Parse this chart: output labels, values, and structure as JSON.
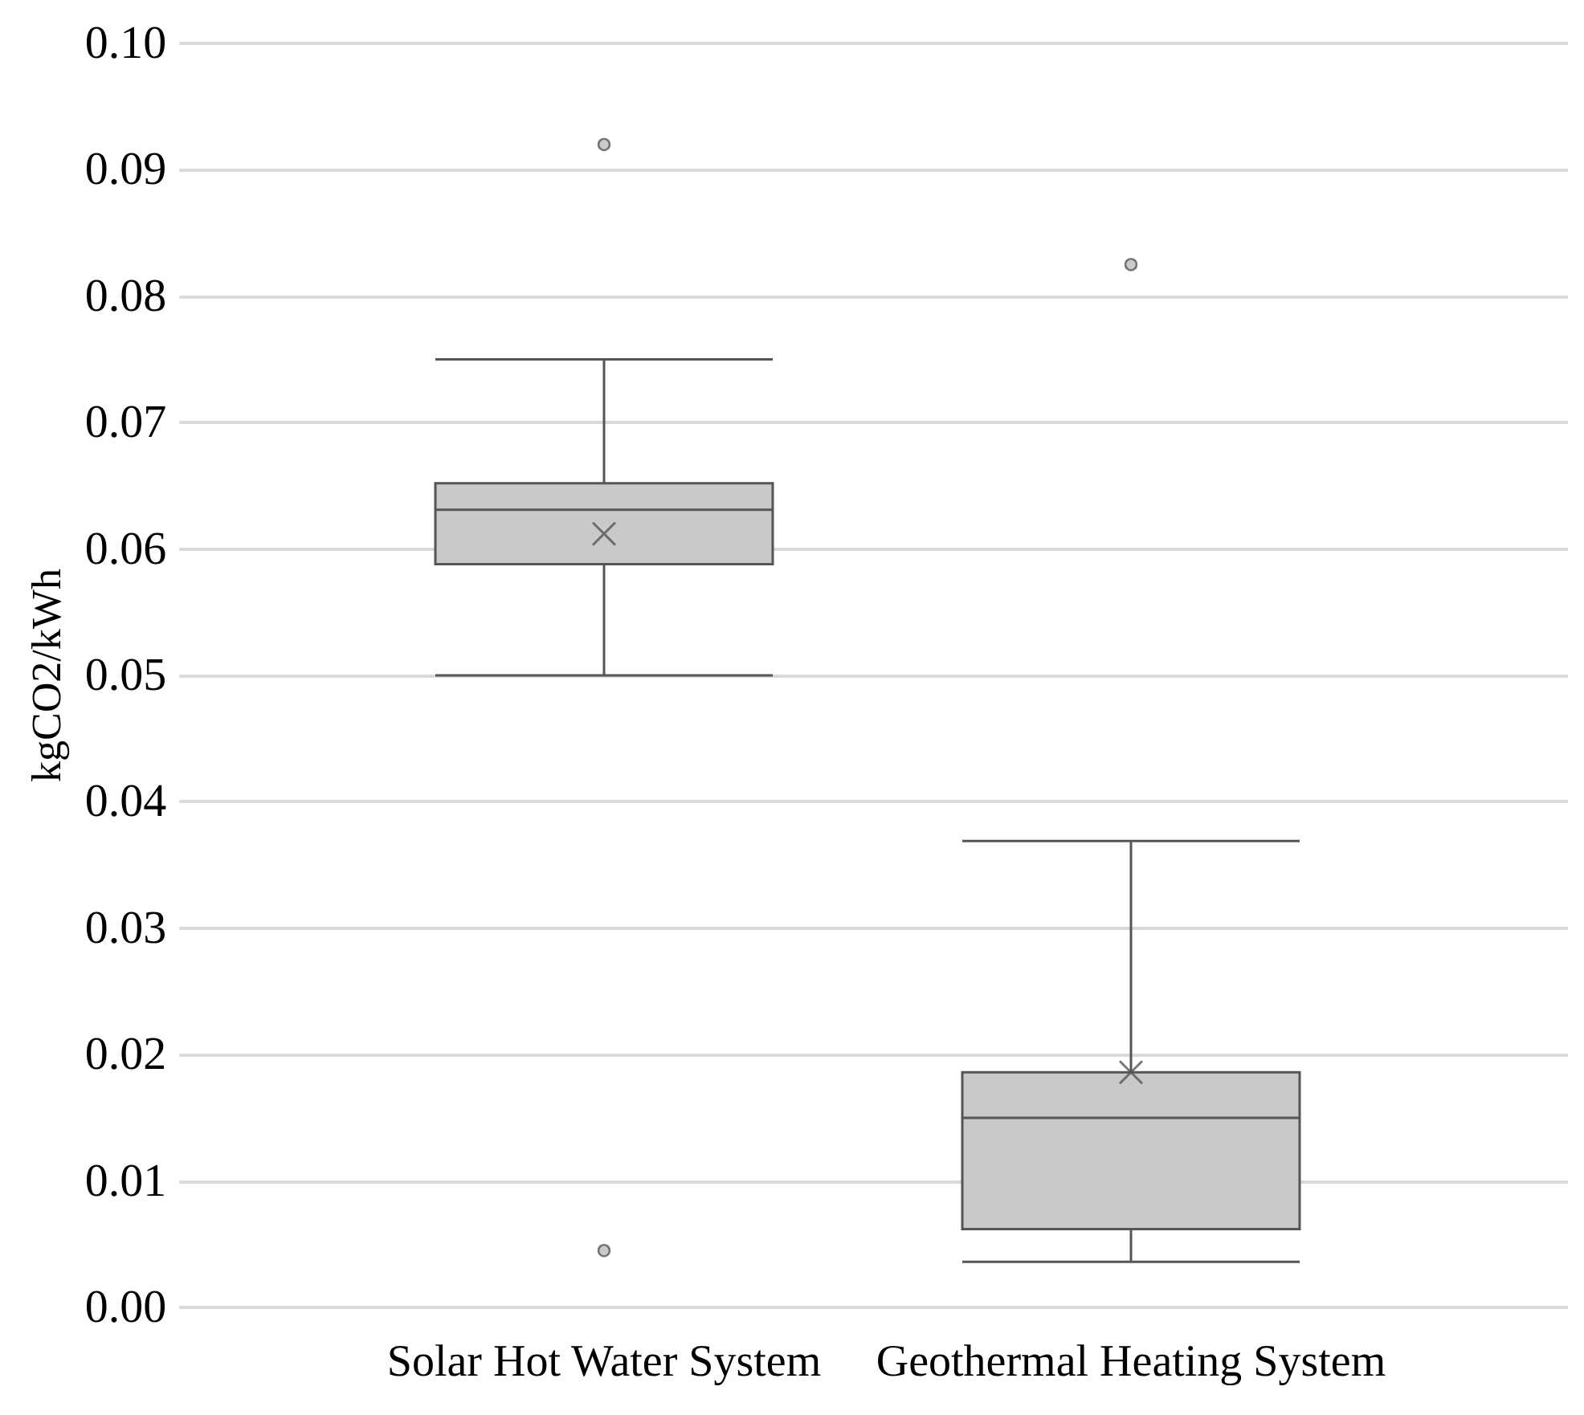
{
  "chart_data": {
    "type": "box",
    "ylabel": "kgCO2/kWh",
    "categories": [
      "Solar Hot Water System",
      "Geothermal Heating System"
    ],
    "series": [
      {
        "color": "#c9c9c9",
        "boxes": [
          {
            "low": 0.05,
            "q1": 0.0588,
            "median": 0.0631,
            "q3": 0.0652,
            "high": 0.075,
            "mean": 0.0612,
            "outliers": [
              0.092,
              0.0045
            ]
          },
          {
            "low": 0.0036,
            "q1": 0.0062,
            "median": 0.015,
            "q3": 0.0186,
            "high": 0.0369,
            "mean": 0.0186,
            "outliers": [
              0.0825
            ]
          }
        ]
      }
    ],
    "ylim": [
      0,
      0.1
    ],
    "yticks": [
      {
        "value": 0,
        "label": "0.00"
      },
      {
        "value": 0.01,
        "label": "0.01"
      },
      {
        "value": 0.02,
        "label": "0.02"
      },
      {
        "value": 0.03,
        "label": "0.03"
      },
      {
        "value": 0.04,
        "label": "0.04"
      },
      {
        "value": 0.05,
        "label": "0.05"
      },
      {
        "value": 0.06,
        "label": "0.06"
      },
      {
        "value": 0.07,
        "label": "0.07"
      },
      {
        "value": 0.08,
        "label": "0.08"
      },
      {
        "value": 0.09,
        "label": "0.09"
      },
      {
        "value": 0.1,
        "label": "0.10"
      }
    ],
    "grid": "y"
  }
}
